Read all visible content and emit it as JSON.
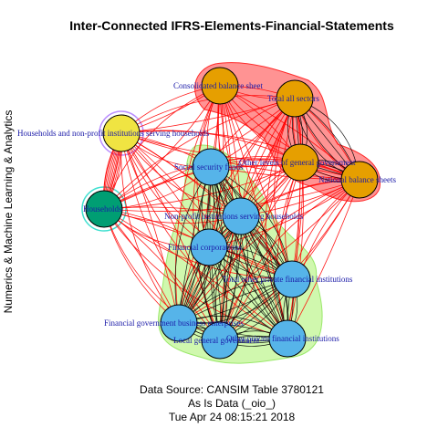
{
  "title": "Inter-Connected IFRS-Elements-Financial-Statements",
  "ylabel": "Numerics & Machine Learning & Analytics",
  "caption": {
    "line1": "Data Source: CANSIM Table 3780121",
    "line2": "As Is Data (_oio_)",
    "line3": "Tue Apr 24 08:15:21 2018"
  },
  "colors": {
    "orange": "#e69f00",
    "blue": "#56b4e9",
    "yellow": "#f0e442",
    "green": "#009e73",
    "red_group": "#ff6f6f",
    "green_group": "#c8f7a0",
    "edge_red": "#ff0000",
    "edge_black": "#000000",
    "label": "#1a1aa8"
  },
  "nodes": [
    {
      "id": "cbs",
      "label": "Consolidated balance sheet",
      "color": "orange"
    },
    {
      "id": "tas",
      "label": "Total all sectors",
      "color": "orange"
    },
    {
      "id": "olg",
      "label": "Other levels of general government",
      "color": "orange"
    },
    {
      "id": "nbs",
      "label": "National balance sheets",
      "color": "orange"
    },
    {
      "id": "hnp",
      "label": "Households and non-profit institutions serving households",
      "color": "yellow"
    },
    {
      "id": "hh",
      "label": "Households",
      "color": "green"
    },
    {
      "id": "ssf",
      "label": "Social security funds",
      "color": "blue"
    },
    {
      "id": "npi",
      "label": "Non-profit institutions serving households",
      "color": "blue"
    },
    {
      "id": "fc",
      "label": "Financial corporations",
      "color": "blue"
    },
    {
      "id": "top",
      "label": "Total other private financial institutions",
      "color": "blue"
    },
    {
      "id": "fgbe",
      "label": "Financial government business enterprises",
      "color": "blue"
    },
    {
      "id": "lgg",
      "label": "Local general government",
      "color": "blue"
    },
    {
      "id": "opf",
      "label": "Other private financial institutions",
      "color": "blue"
    }
  ],
  "groups": [
    {
      "name": "red",
      "members": [
        "cbs",
        "tas",
        "olg",
        "nbs"
      ]
    },
    {
      "name": "green",
      "members": [
        "ssf",
        "npi",
        "fc",
        "top",
        "fgbe",
        "lgg",
        "opf"
      ]
    },
    {
      "name": "yellow",
      "members": [
        "hnp"
      ]
    },
    {
      "name": "cyan",
      "members": [
        "hh"
      ]
    }
  ]
}
